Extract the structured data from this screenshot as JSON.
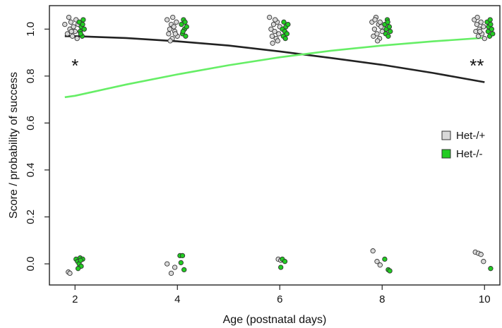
{
  "chart_data": {
    "type": "scatter",
    "title": "",
    "xlabel": "Age (postnatal days)",
    "ylabel": "Score / probability of success",
    "xlim": [
      1.5,
      10.3
    ],
    "ylim": [
      -0.09,
      1.1
    ],
    "xticks": [
      2,
      4,
      6,
      8,
      10
    ],
    "yticks": [
      0.0,
      0.2,
      0.4,
      0.6,
      0.8,
      1.0
    ],
    "ytick_labels": [
      "0.0",
      "0.2",
      "0.4",
      "0.6",
      "0.8",
      "1.0"
    ],
    "grid": false,
    "legend_position": "right",
    "series": [
      {
        "name": "Het-/+",
        "marker_color": "#d9d9d9",
        "line_color": "#222222",
        "fit_curve": [
          [
            1.8,
            0.97
          ],
          [
            2,
            0.97
          ],
          [
            3,
            0.962
          ],
          [
            4,
            0.948
          ],
          [
            5,
            0.93
          ],
          [
            6,
            0.905
          ],
          [
            7,
            0.877
          ],
          [
            8,
            0.848
          ],
          [
            9,
            0.813
          ],
          [
            10,
            0.774
          ]
        ],
        "points": [
          [
            1.8,
            1.02
          ],
          [
            1.85,
            0.98
          ],
          [
            1.9,
            1.0
          ],
          [
            1.92,
            1.03
          ],
          [
            1.95,
            0.97
          ],
          [
            1.97,
            1.01
          ],
          [
            2.0,
            0.99
          ],
          [
            2.02,
            1.04
          ],
          [
            2.04,
            0.96
          ],
          [
            1.88,
            1.05
          ],
          [
            1.93,
            0.99
          ],
          [
            2.06,
            1.02
          ],
          [
            3.8,
            1.04
          ],
          [
            3.83,
            0.98
          ],
          [
            3.85,
            1.0
          ],
          [
            3.88,
            1.02
          ],
          [
            3.9,
            0.96
          ],
          [
            3.93,
            1.01
          ],
          [
            3.95,
            0.99
          ],
          [
            3.98,
            1.03
          ],
          [
            4.0,
            0.97
          ],
          [
            3.86,
            0.95
          ],
          [
            3.91,
            1.05
          ],
          [
            3.96,
            0.98
          ],
          [
            5.8,
            1.05
          ],
          [
            5.83,
            1.0
          ],
          [
            5.85,
            0.97
          ],
          [
            5.88,
            1.02
          ],
          [
            5.9,
            0.99
          ],
          [
            5.93,
            0.96
          ],
          [
            5.95,
            1.03
          ],
          [
            5.98,
            0.98
          ],
          [
            6.0,
            1.01
          ],
          [
            5.86,
            0.94
          ],
          [
            5.91,
            1.04
          ],
          [
            5.96,
            0.95
          ],
          [
            7.8,
            1.03
          ],
          [
            7.83,
            0.97
          ],
          [
            7.85,
            1.0
          ],
          [
            7.88,
            1.05
          ],
          [
            7.9,
            0.98
          ],
          [
            7.93,
            1.02
          ],
          [
            7.95,
            0.96
          ],
          [
            7.98,
            1.01
          ],
          [
            8.0,
            0.99
          ],
          [
            7.86,
            1.04
          ],
          [
            7.91,
            0.95
          ],
          [
            7.96,
            1.03
          ],
          [
            9.8,
            1.04
          ],
          [
            9.83,
            0.99
          ],
          [
            9.85,
            1.02
          ],
          [
            9.88,
            0.97
          ],
          [
            9.9,
            1.0
          ],
          [
            9.93,
            1.03
          ],
          [
            9.95,
            0.98
          ],
          [
            9.98,
            1.01
          ],
          [
            10.0,
            0.96
          ],
          [
            9.86,
            1.05
          ],
          [
            9.91,
            0.99
          ],
          [
            1.87,
            -0.035
          ],
          [
            1.9,
            -0.04
          ],
          [
            3.8,
            0.0
          ],
          [
            3.88,
            -0.04
          ],
          [
            3.95,
            -0.015
          ],
          [
            5.97,
            0.02
          ],
          [
            6.02,
            0.015
          ],
          [
            7.82,
            0.055
          ],
          [
            7.9,
            0.01
          ],
          [
            7.96,
            -0.005
          ],
          [
            9.82,
            0.05
          ],
          [
            9.88,
            0.045
          ],
          [
            9.93,
            0.04
          ],
          [
            9.98,
            0.01
          ]
        ]
      },
      {
        "name": "Het-/-",
        "marker_color": "#22cc22",
        "line_color": "#66ee66",
        "fit_curve": [
          [
            1.8,
            0.71
          ],
          [
            2,
            0.716
          ],
          [
            3,
            0.764
          ],
          [
            4,
            0.807
          ],
          [
            5,
            0.846
          ],
          [
            6,
            0.88
          ],
          [
            7,
            0.908
          ],
          [
            8,
            0.93
          ],
          [
            9,
            0.948
          ],
          [
            10,
            0.963
          ]
        ],
        "points": [
          [
            2.08,
            1.03
          ],
          [
            2.1,
            0.99
          ],
          [
            2.12,
            1.01
          ],
          [
            2.14,
            0.97
          ],
          [
            2.16,
            1.04
          ],
          [
            2.18,
            1.0
          ],
          [
            2.11,
            0.98
          ],
          [
            2.15,
            1.02
          ],
          [
            4.08,
            1.02
          ],
          [
            4.1,
            0.98
          ],
          [
            4.12,
            1.04
          ],
          [
            4.14,
            1.0
          ],
          [
            4.16,
            0.97
          ],
          [
            4.18,
            1.01
          ],
          [
            4.11,
            0.99
          ],
          [
            4.15,
            1.03
          ],
          [
            6.05,
            1.0
          ],
          [
            6.07,
            0.97
          ],
          [
            6.08,
            1.03
          ],
          [
            6.1,
            0.99
          ],
          [
            6.12,
            1.01
          ],
          [
            6.14,
            0.98
          ],
          [
            6.16,
            1.02
          ],
          [
            6.11,
            0.96
          ],
          [
            8.05,
            1.02
          ],
          [
            8.07,
            0.98
          ],
          [
            8.08,
            1.0
          ],
          [
            8.1,
            1.04
          ],
          [
            8.12,
            0.97
          ],
          [
            8.14,
            1.01
          ],
          [
            8.16,
            0.99
          ],
          [
            8.11,
            1.03
          ],
          [
            10.05,
            1.03
          ],
          [
            10.07,
            0.99
          ],
          [
            10.08,
            1.01
          ],
          [
            10.1,
            0.97
          ],
          [
            10.12,
            1.02
          ],
          [
            10.14,
            1.0
          ],
          [
            10.16,
            0.98
          ],
          [
            10.11,
            1.04
          ],
          [
            2.02,
            0.02
          ],
          [
            2.05,
            0.01
          ],
          [
            2.08,
            0.0
          ],
          [
            2.1,
            0.025
          ],
          [
            2.12,
            -0.01
          ],
          [
            2.15,
            0.02
          ],
          [
            2.06,
            -0.02
          ],
          [
            2.11,
            0.015
          ],
          [
            4.05,
            0.035
          ],
          [
            4.1,
            0.035
          ],
          [
            4.13,
            -0.025
          ],
          [
            4.07,
            0.005
          ],
          [
            6.05,
            0.02
          ],
          [
            6.1,
            0.01
          ],
          [
            6.02,
            -0.015
          ],
          [
            8.05,
            0.02
          ],
          [
            8.12,
            -0.025
          ],
          [
            8.15,
            -0.03
          ],
          [
            10.12,
            -0.02
          ]
        ]
      }
    ],
    "annotations": [
      {
        "text": "*",
        "x": 2.0,
        "y": 0.86
      },
      {
        "text": "**",
        "x": 9.85,
        "y": 0.86
      }
    ]
  }
}
